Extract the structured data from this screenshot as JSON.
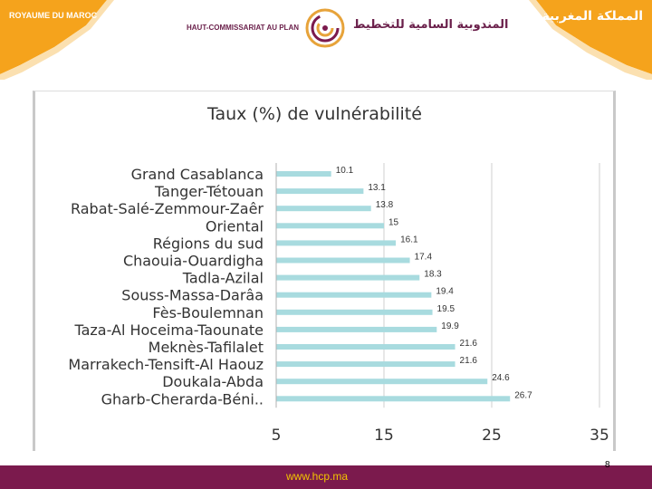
{
  "header": {
    "left_text": "ROYAUME DU MAROC",
    "right_text": "المملكة المغربية",
    "org_fr": "HAUT-COMMISSARIAT AU PLAN",
    "org_ar": "المندوبية السامية للتخطيط",
    "brand_color": "#f5a31c",
    "emblem_icon": "hcp-spiral-logo"
  },
  "chart_data": {
    "type": "bar",
    "orientation": "horizontal",
    "title": "Taux (%) de vulnérabilité",
    "categories": [
      "Grand Casablanca",
      "Tanger-Tétouan",
      "Rabat-Salé-Zemmour-Zaêr",
      "Oriental",
      "Régions du sud",
      "Chaouia-Ouardigha",
      "Tadla-Azilal",
      "Souss-Massa-Darâa",
      "Fès-Boulemnan",
      "Taza-Al Hoceima-Taounate",
      "Meknès-Tafilalet",
      "Marrakech-Tensift-Al Haouz",
      "Doukala-Abda",
      "Gharb-Cherarda-Béni.."
    ],
    "values": [
      10.1,
      13.1,
      13.8,
      15,
      16.1,
      17.4,
      18.3,
      19.4,
      19.5,
      19.9,
      21.6,
      21.6,
      24.6,
      26.7
    ],
    "value_labels": [
      "10.1",
      "13.1",
      "13.8",
      "15",
      "16.1",
      "17.4",
      "18.3",
      "19.4",
      "19.5",
      "19.9",
      "21.6",
      "21.6",
      "24.6",
      "26.7"
    ],
    "xlim": [
      5,
      35
    ],
    "xticks": [
      "5",
      "15",
      "25",
      "35"
    ],
    "grid": true,
    "bar_color": "#a8dbdf"
  },
  "footer": {
    "url": "www.hcp.ma",
    "page_number": "8",
    "background_color": "#7b1a4d",
    "url_color": "#f2c400"
  }
}
